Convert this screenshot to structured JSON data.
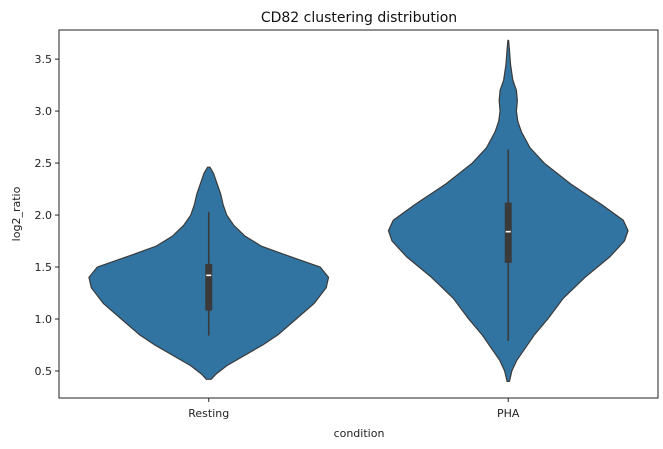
{
  "chart_data": {
    "type": "violin",
    "title": "CD82 clustering distribution",
    "xlabel": "condition",
    "ylabel": "log2_ratio",
    "categories": [
      "Resting",
      "PHA"
    ],
    "ylim": [
      0.24,
      3.78
    ],
    "yticks": [
      0.5,
      1.0,
      1.5,
      2.0,
      2.5,
      3.0,
      3.5
    ],
    "ytick_labels": [
      "0.5",
      "1.0",
      "1.5",
      "2.0",
      "2.5",
      "3.0",
      "3.5"
    ],
    "grid": false,
    "legend": "none",
    "colors": {
      "fill": "#3274a1",
      "edge": "#3a3a3a",
      "box": "#3a3a3a",
      "median": "#ffffff"
    },
    "violins": [
      {
        "category": "Resting",
        "box": {
          "whisker_low": 0.84,
          "q1": 1.08,
          "median": 1.42,
          "q3": 1.53,
          "whisker_high": 2.03
        },
        "profile": [
          [
            0.42,
            0.02
          ],
          [
            0.47,
            0.06
          ],
          [
            0.55,
            0.15
          ],
          [
            0.65,
            0.3
          ],
          [
            0.75,
            0.45
          ],
          [
            0.85,
            0.58
          ],
          [
            1.0,
            0.73
          ],
          [
            1.15,
            0.88
          ],
          [
            1.3,
            0.98
          ],
          [
            1.4,
            1.0
          ],
          [
            1.5,
            0.93
          ],
          [
            1.6,
            0.68
          ],
          [
            1.7,
            0.44
          ],
          [
            1.8,
            0.3
          ],
          [
            1.9,
            0.21
          ],
          [
            2.0,
            0.15
          ],
          [
            2.1,
            0.12
          ],
          [
            2.2,
            0.1
          ],
          [
            2.3,
            0.07
          ],
          [
            2.4,
            0.04
          ],
          [
            2.46,
            0.01
          ]
        ]
      },
      {
        "category": "PHA",
        "box": {
          "whisker_low": 0.79,
          "q1": 1.54,
          "median": 1.84,
          "q3": 2.12,
          "whisker_high": 2.63
        },
        "profile": [
          [
            0.4,
            0.01
          ],
          [
            0.5,
            0.03
          ],
          [
            0.6,
            0.07
          ],
          [
            0.7,
            0.13
          ],
          [
            0.85,
            0.22
          ],
          [
            1.0,
            0.33
          ],
          [
            1.2,
            0.46
          ],
          [
            1.4,
            0.64
          ],
          [
            1.6,
            0.85
          ],
          [
            1.75,
            0.97
          ],
          [
            1.85,
            1.0
          ],
          [
            1.95,
            0.96
          ],
          [
            2.1,
            0.78
          ],
          [
            2.3,
            0.52
          ],
          [
            2.5,
            0.3
          ],
          [
            2.65,
            0.18
          ],
          [
            2.8,
            0.11
          ],
          [
            2.9,
            0.08
          ],
          [
            3.0,
            0.068
          ],
          [
            3.1,
            0.076
          ],
          [
            3.2,
            0.068
          ],
          [
            3.3,
            0.038
          ],
          [
            3.45,
            0.019
          ],
          [
            3.6,
            0.009
          ],
          [
            3.68,
            0.003
          ]
        ]
      }
    ]
  }
}
